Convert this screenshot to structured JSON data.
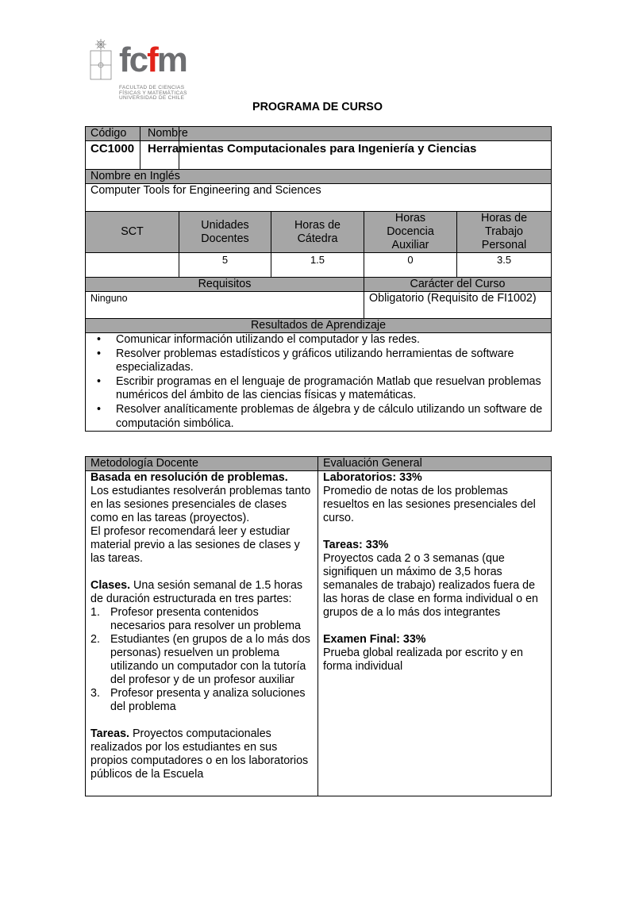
{
  "logo": {
    "text_fc": "fc",
    "text_f": "f",
    "text_m": "m",
    "subtitle": [
      "FACULTAD DE CIENCIAS",
      "FÍSICAS Y MATEMÁTICAS",
      "UNIVERSIDAD DE CHILE"
    ]
  },
  "title": "PROGRAMA DE CURSO",
  "course": {
    "code_label": "Código",
    "name_label": "Nombre",
    "code": "CC1000",
    "name": "Herramientas Computacionales para Ingeniería y Ciencias",
    "english_label": "Nombre en Inglés",
    "english_name": "Computer Tools for Engineering and Sciences",
    "hours_headers": [
      "SCT",
      "Unidades Docentes",
      "Horas de Cátedra",
      "Horas Docencia Auxiliar",
      "Horas de Trabajo Personal"
    ],
    "hours_values": [
      "",
      "5",
      "1.5",
      "0",
      "3.5"
    ],
    "requisitos_label": "Requisitos",
    "requisitos": "Ninguno",
    "caracter_label": "Carácter del Curso",
    "caracter": "Obligatorio (Requisito de FI1002)",
    "resultados_label": "Resultados de Aprendizaje",
    "resultados": [
      "Comunicar información utilizando el computador y las redes.",
      "Resolver problemas estadísticos y gráficos utilizando herramientas de software especializadas.",
      "Escribir programas en el lenguaje de programación Matlab que resuelvan problemas numéricos del ámbito de las ciencias físicas y matemáticas.",
      "Resolver analíticamente problemas de álgebra y de cálculo utilizando un software de computación simbólica."
    ]
  },
  "metodologia": {
    "label": "Metodología Docente",
    "heading": "Basada en resolución de problemas.",
    "intro": "Los estudiantes resolverán problemas tanto en las sesiones presenciales de clases como en las tareas (proyectos).",
    "intro2": "El profesor recomendará leer y estudiar material previo a las sesiones de clases y las tareas.",
    "clases_label": "Clases.",
    "clases_text": " Una sesión semanal de 1.5 horas de duración estructurada  en tres partes:",
    "steps": [
      {
        "n": "1.",
        "text": "Profesor presenta contenidos necesarios para resolver un problema"
      },
      {
        "n": "2.",
        "text": "Estudiantes (en grupos de a lo más dos personas) resuelven un problema utilizando un computador con la tutoría del profesor y de un profesor auxiliar"
      },
      {
        "n": "3.",
        "text": "Profesor presenta y analiza soluciones del problema"
      }
    ],
    "tareas_label": "Tareas.",
    "tareas_text": " Proyectos computacionales realizados por los estudiantes en sus propios computadores o en los laboratorios públicos de la Escuela"
  },
  "evaluacion": {
    "label": "Evaluación General",
    "items": [
      {
        "title": "Laboratorios: 33%",
        "text": "Promedio de notas de los problemas resueltos en las sesiones presenciales del curso."
      },
      {
        "title": "Tareas: 33%",
        "text": "Proyectos cada 2 o 3 semanas (que signifiquen un máximo de 3,5 horas semanales de trabajo) realizados fuera de las horas de clase en forma individual o en grupos de a lo más dos integrantes"
      },
      {
        "title": "Examen Final: 33%",
        "text": "Prueba global realizada por escrito y en forma individual"
      }
    ]
  }
}
